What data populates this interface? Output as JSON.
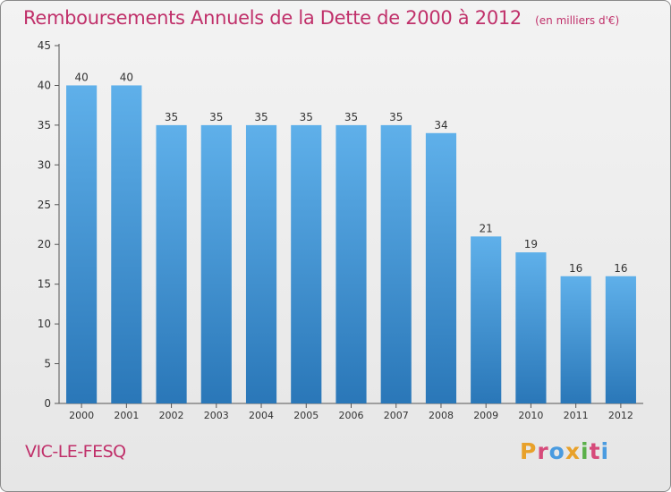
{
  "header": {
    "title": "Remboursements Annuels de la Dette de 2000 à 2012",
    "subtitle": "(en milliers d'€)"
  },
  "footer": {
    "town": "VIC-LE-FESQ",
    "logo": "Proxiti"
  },
  "colors": {
    "title": "#c0306a",
    "bar_top": "#5fb0ea",
    "bar_bottom": "#2a77b8",
    "logo": [
      "#e8a12a",
      "#d64a7a",
      "#4a9be0",
      "#e8a12a",
      "#5bb04a",
      "#d64a7a",
      "#4a9be0"
    ]
  },
  "chart_data": {
    "type": "bar",
    "title": "Remboursements Annuels de la Dette de 2000 à 2012",
    "subtitle": "(en milliers d'€)",
    "categories": [
      "2000",
      "2001",
      "2002",
      "2003",
      "2004",
      "2005",
      "2006",
      "2007",
      "2008",
      "2009",
      "2010",
      "2011",
      "2012"
    ],
    "values": [
      40,
      40,
      35,
      35,
      35,
      35,
      35,
      35,
      34,
      21,
      19,
      16,
      16
    ],
    "data_labels": [
      "40",
      "40",
      "35",
      "35",
      "35",
      "35",
      "35",
      "35",
      "34",
      "21",
      "19",
      "16",
      "16"
    ],
    "ylim": [
      0,
      45
    ],
    "yticks": [
      0,
      5,
      10,
      15,
      20,
      25,
      30,
      35,
      40,
      45
    ],
    "grid": false,
    "legend": "none"
  }
}
